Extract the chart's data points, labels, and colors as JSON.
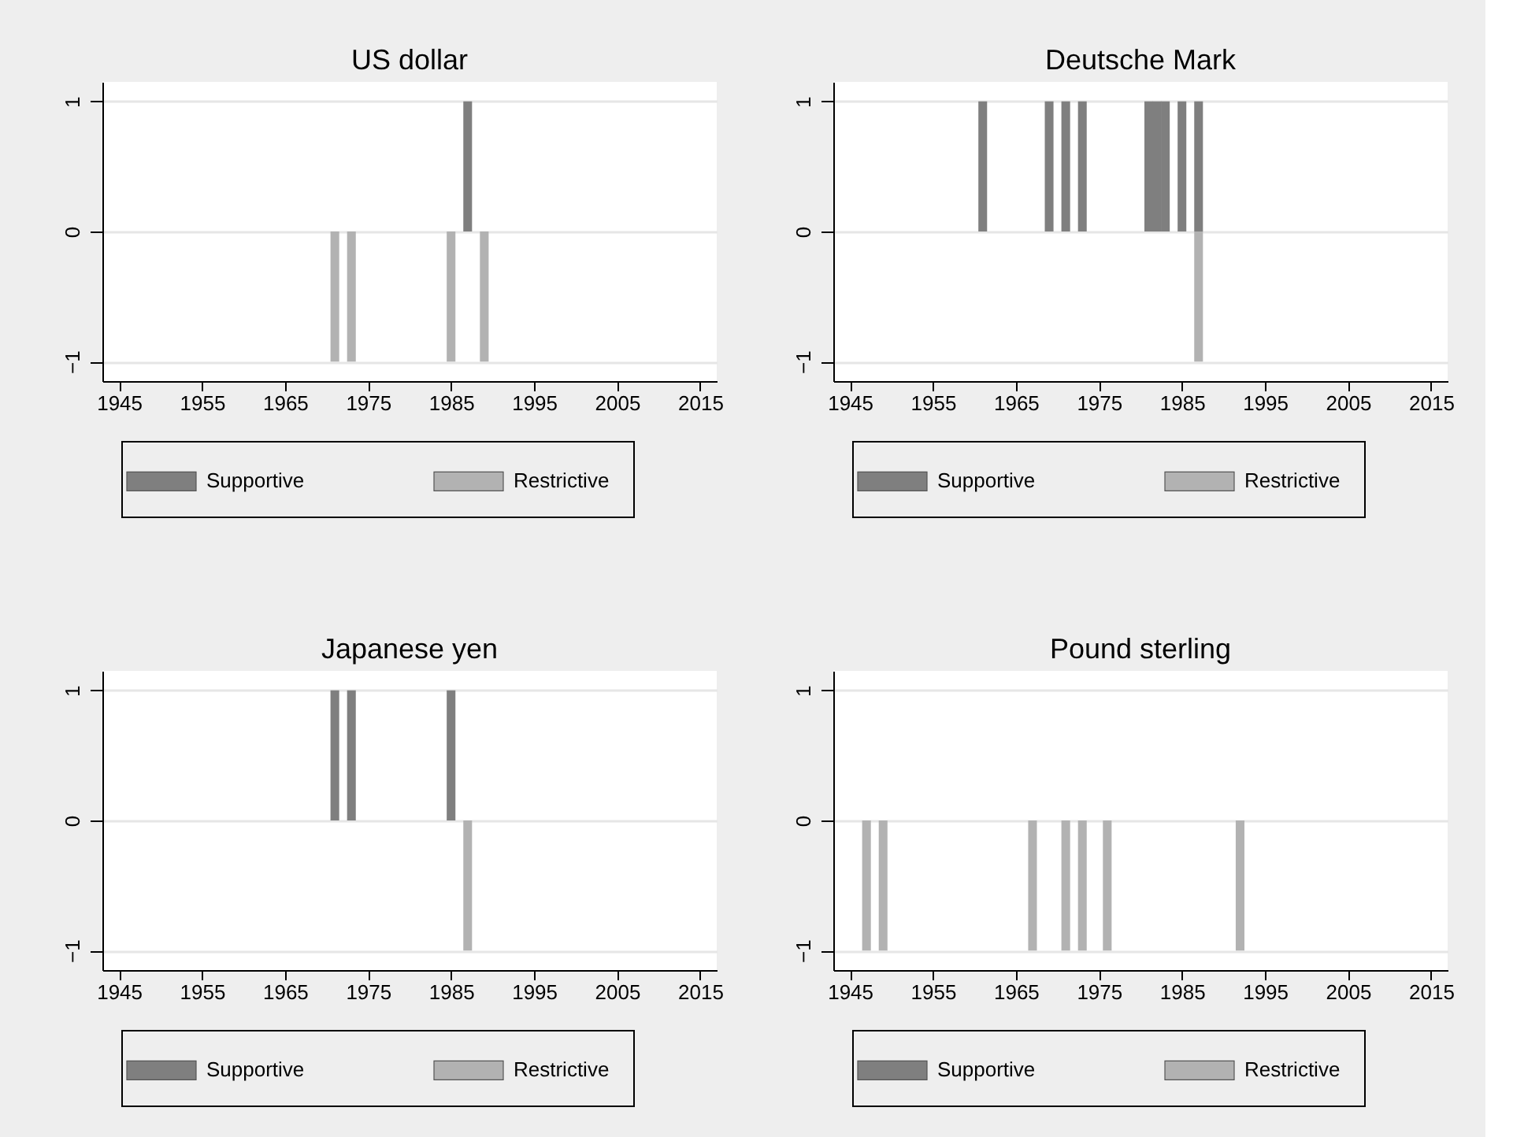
{
  "chart_data": [
    {
      "type": "bar",
      "title": "US dollar",
      "xlim": [
        1943,
        2017
      ],
      "xticks": [
        1945,
        1955,
        1965,
        1975,
        1985,
        1995,
        2005,
        2015
      ],
      "ylim": [
        -1.15,
        1.15
      ],
      "yticks": [
        -1,
        0,
        1
      ],
      "grid": "y",
      "legend": "bottom",
      "series": [
        {
          "name": "Supportive",
          "color": "#7f7f7f",
          "x": [
            1987
          ],
          "values": [
            1
          ]
        },
        {
          "name": "Restrictive",
          "color": "#b2b2b2",
          "x": [
            1971,
            1973,
            1985,
            1989
          ],
          "values": [
            -1,
            -1,
            -1,
            -1
          ]
        }
      ]
    },
    {
      "type": "bar",
      "title": "Deutsche Mark",
      "xlim": [
        1943,
        2017
      ],
      "xticks": [
        1945,
        1955,
        1965,
        1975,
        1985,
        1995,
        2005,
        2015
      ],
      "ylim": [
        -1.15,
        1.15
      ],
      "yticks": [
        -1,
        0,
        1
      ],
      "grid": "y",
      "legend": "bottom",
      "series": [
        {
          "name": "Supportive",
          "color": "#7f7f7f",
          "x": [
            1961,
            1969,
            1971,
            1973,
            1981,
            1982,
            1983,
            1985,
            1987
          ],
          "values": [
            1,
            1,
            1,
            1,
            1,
            1,
            1,
            1,
            1
          ]
        },
        {
          "name": "Restrictive",
          "color": "#b2b2b2",
          "x": [
            1987
          ],
          "values": [
            -1
          ]
        }
      ]
    },
    {
      "type": "bar",
      "title": "Japanese yen",
      "xlim": [
        1943,
        2017
      ],
      "xticks": [
        1945,
        1955,
        1965,
        1975,
        1985,
        1995,
        2005,
        2015
      ],
      "ylim": [
        -1.15,
        1.15
      ],
      "yticks": [
        -1,
        0,
        1
      ],
      "grid": "y",
      "legend": "bottom",
      "series": [
        {
          "name": "Supportive",
          "color": "#7f7f7f",
          "x": [
            1971,
            1973,
            1985
          ],
          "values": [
            1,
            1,
            1
          ]
        },
        {
          "name": "Restrictive",
          "color": "#b2b2b2",
          "x": [
            1987
          ],
          "values": [
            -1
          ]
        }
      ]
    },
    {
      "type": "bar",
      "title": "Pound sterling",
      "xlim": [
        1943,
        2017
      ],
      "xticks": [
        1945,
        1955,
        1965,
        1975,
        1985,
        1995,
        2005,
        2015
      ],
      "ylim": [
        -1.15,
        1.15
      ],
      "yticks": [
        -1,
        0,
        1
      ],
      "grid": "y",
      "legend": "bottom",
      "series": [
        {
          "name": "Supportive",
          "color": "#7f7f7f"
        },
        {
          "name": "Restrictive",
          "color": "#b2b2b2",
          "x": [
            1947,
            1949,
            1967,
            1971,
            1973,
            1976,
            1992
          ],
          "values": [
            -1,
            -1,
            -1,
            -1,
            -1,
            -1,
            -1
          ]
        }
      ]
    }
  ]
}
